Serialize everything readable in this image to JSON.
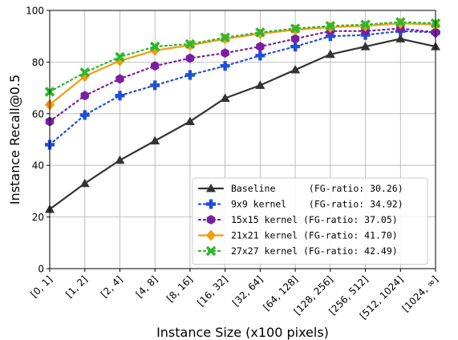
{
  "chart_data": {
    "type": "line",
    "xlabel": "Instance Size (x100 pixels)",
    "ylabel": "Instance Recall@0.5",
    "categories": [
      "[0, 1]",
      "[1, 2]",
      "[2, 4]",
      "[4, 8]",
      "[8, 16]",
      "[16, 32]",
      "[32, 64]",
      "[64, 128]",
      "[128, 256]",
      "[256, 512]",
      "[512, 1024]",
      "[1024, ∞]"
    ],
    "ylim": [
      0,
      100
    ],
    "yticks": [
      0,
      20,
      40,
      60,
      80,
      100
    ],
    "grid": true,
    "legend_position": "bottom-right",
    "series": [
      {
        "name": "Baseline      (FG-ratio: 30.26)",
        "color": "#333333",
        "marker": "triangle",
        "dash": "solid",
        "values": [
          23,
          33,
          42,
          49.5,
          57,
          66,
          71,
          77,
          83,
          86,
          89,
          86
        ]
      },
      {
        "name": "9x9 kernel    (FG-ratio: 34.92)",
        "color": "#1f4fd8",
        "marker": "plus",
        "dash": "dotted",
        "values": [
          48,
          59.5,
          67,
          71,
          75,
          78.5,
          82.5,
          86,
          90,
          90.5,
          92,
          91.5
        ]
      },
      {
        "name": "15x15 kernel (FG-ratio: 37.05)",
        "color": "#7b1fa2",
        "marker": "hexagon",
        "dash": "dotted",
        "values": [
          57,
          67,
          73.5,
          78.5,
          81.5,
          83.5,
          86,
          89,
          92,
          92,
          93,
          91.5
        ]
      },
      {
        "name": "21x21 kernel (FG-ratio: 41.70)",
        "color": "#f39c12",
        "marker": "diamond",
        "dash": "solid",
        "values": [
          63.5,
          74.5,
          80.5,
          84.5,
          86.5,
          89,
          91,
          92.5,
          93.5,
          94,
          95,
          94.5
        ]
      },
      {
        "name": "27x27 kernel (FG-ratio: 42.49)",
        "color": "#2db82d",
        "marker": "x",
        "dash": "dotted",
        "values": [
          68.5,
          76,
          82,
          86,
          87,
          89.5,
          91.5,
          93,
          94,
          94.5,
          95.5,
          95
        ]
      }
    ]
  }
}
